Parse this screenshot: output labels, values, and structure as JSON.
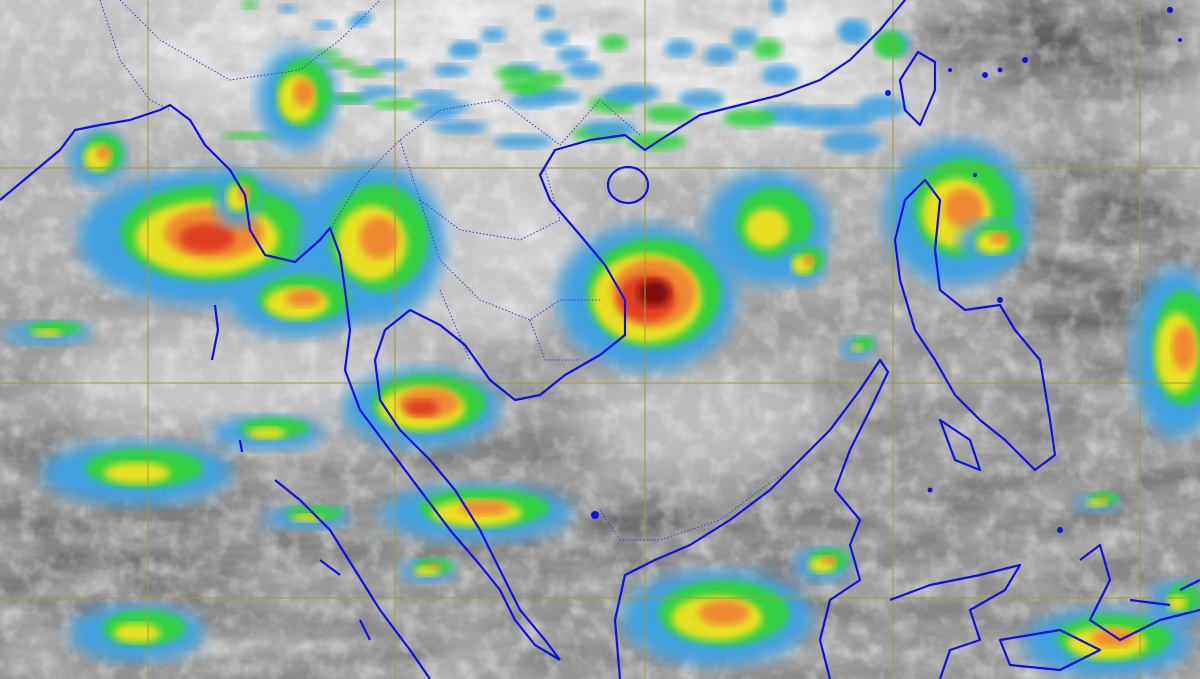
{
  "image": {
    "kind": "enhanced infrared satellite image",
    "region": "Southeast Asia"
  },
  "colors": {
    "background_cloud_low": "#7c7c7c",
    "background_cloud_high": "#e6e6e6",
    "coastline": "#1010e0",
    "border": "#3a3ad0",
    "grid": "#a09a40",
    "enhancement_scale": [
      "#3fa0e0",
      "#30d040",
      "#e8e020",
      "#f08a30",
      "#e04020",
      "#801010"
    ]
  },
  "grid_visible": true,
  "legend_visible": false
}
